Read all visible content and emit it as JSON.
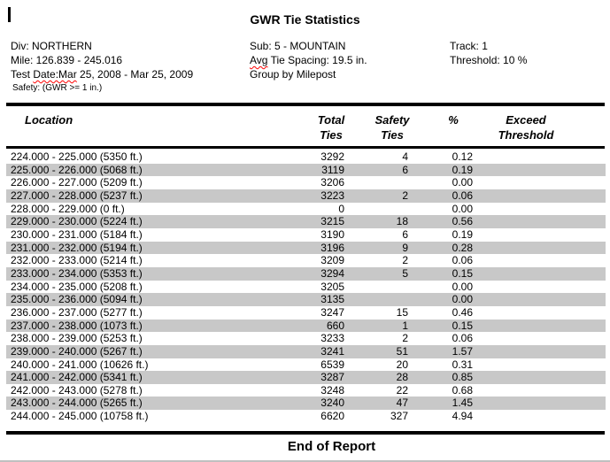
{
  "page": {
    "title": "GWR Tie Statistics",
    "footer": "End of Report"
  },
  "info": {
    "col1": {
      "division": "Div: NORTHERN",
      "mile": "Mile: 126.839 - 245.016",
      "test_date_prefix": "Test ",
      "test_date_misspelled": "Date:Mar",
      "test_date_suffix": " 25, 2008 - Mar 25, 2009",
      "safety_note": "Safety: (GWR >= 1 in.)"
    },
    "col2": {
      "sub": "Sub: 5 - MOUNTAIN",
      "avg_misspelled": "Avg",
      "avg_suffix": " Tie Spacing: 19.5 in.",
      "group": "Group by Milepost"
    },
    "col3": {
      "track": "Track: 1",
      "threshold": "Threshold: 10 %"
    }
  },
  "table": {
    "headers": {
      "location": "Location",
      "total_ties": [
        "Total",
        "Ties"
      ],
      "safety_ties": [
        "Safety",
        "Ties"
      ],
      "percent": "%",
      "exceed_threshold": [
        "Exceed",
        "Threshold"
      ]
    },
    "rows": [
      {
        "location": "224.000 - 225.000 (5350 ft.)",
        "total": "3292",
        "safety": "4",
        "pct": "0.12",
        "exceed": ""
      },
      {
        "location": "225.000 - 226.000 (5068 ft.)",
        "total": "3119",
        "safety": "6",
        "pct": "0.19",
        "exceed": ""
      },
      {
        "location": "226.000 - 227.000 (5209 ft.)",
        "total": "3206",
        "safety": "",
        "pct": "0.00",
        "exceed": ""
      },
      {
        "location": "227.000 - 228.000 (5237 ft.)",
        "total": "3223",
        "safety": "2",
        "pct": "0.06",
        "exceed": ""
      },
      {
        "location": "228.000 - 229.000 (0 ft.)",
        "total": "0",
        "safety": "",
        "pct": "0.00",
        "exceed": ""
      },
      {
        "location": "229.000 - 230.000 (5224 ft.)",
        "total": "3215",
        "safety": "18",
        "pct": "0.56",
        "exceed": ""
      },
      {
        "location": "230.000 - 231.000 (5184 ft.)",
        "total": "3190",
        "safety": "6",
        "pct": "0.19",
        "exceed": ""
      },
      {
        "location": "231.000 - 232.000 (5194 ft.)",
        "total": "3196",
        "safety": "9",
        "pct": "0.28",
        "exceed": ""
      },
      {
        "location": "232.000 - 233.000 (5214 ft.)",
        "total": "3209",
        "safety": "2",
        "pct": "0.06",
        "exceed": ""
      },
      {
        "location": "233.000 - 234.000 (5353 ft.)",
        "total": "3294",
        "safety": "5",
        "pct": "0.15",
        "exceed": ""
      },
      {
        "location": "234.000 - 235.000 (5208 ft.)",
        "total": "3205",
        "safety": "",
        "pct": "0.00",
        "exceed": ""
      },
      {
        "location": "235.000 - 236.000 (5094 ft.)",
        "total": "3135",
        "safety": "",
        "pct": "0.00",
        "exceed": ""
      },
      {
        "location": "236.000 - 237.000 (5277 ft.)",
        "total": "3247",
        "safety": "15",
        "pct": "0.46",
        "exceed": ""
      },
      {
        "location": "237.000 - 238.000 (1073 ft.)",
        "total": "660",
        "safety": "1",
        "pct": "0.15",
        "exceed": ""
      },
      {
        "location": "238.000 - 239.000 (5253 ft.)",
        "total": "3233",
        "safety": "2",
        "pct": "0.06",
        "exceed": ""
      },
      {
        "location": "239.000 - 240.000 (5267 ft.)",
        "total": "3241",
        "safety": "51",
        "pct": "1.57",
        "exceed": ""
      },
      {
        "location": "240.000 - 241.000 (10626 ft.)",
        "total": "6539",
        "safety": "20",
        "pct": "0.31",
        "exceed": ""
      },
      {
        "location": "241.000 - 242.000 (5341 ft.)",
        "total": "3287",
        "safety": "28",
        "pct": "0.85",
        "exceed": ""
      },
      {
        "location": "242.000 - 243.000 (5278 ft.)",
        "total": "3248",
        "safety": "22",
        "pct": "0.68",
        "exceed": ""
      },
      {
        "location": "243.000 - 244.000 (5265 ft.)",
        "total": "3240",
        "safety": "47",
        "pct": "1.45",
        "exceed": ""
      },
      {
        "location": "244.000 - 245.000 (10758 ft.)",
        "total": "6620",
        "safety": "327",
        "pct": "4.94",
        "exceed": ""
      }
    ]
  },
  "colors": {
    "row_alt": "#c8c8c8",
    "rule": "#000000",
    "misspell_underline": "#ff0000"
  }
}
